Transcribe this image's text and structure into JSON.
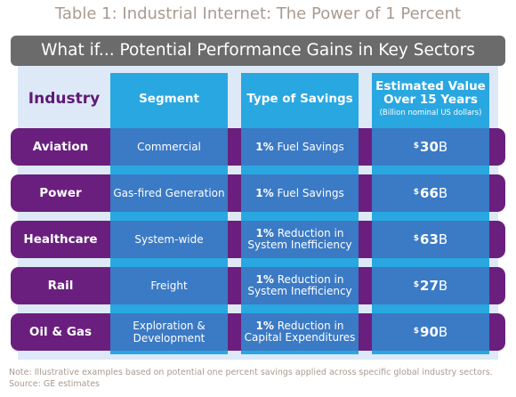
{
  "title": "Table 1: Industrial Internet: The Power of 1 Percent",
  "banner": "What if... Potential Performance Gains in Key Sectors",
  "headers": {
    "industry": "Industry",
    "segment": "Segment",
    "savings": "Type of Savings",
    "value_line1": "Estimated Value",
    "value_line2": "Over 15 Years",
    "value_sub": "(Billion nominal US dollars)"
  },
  "rows": [
    {
      "industry": "Aviation",
      "segment": "Commercial",
      "savings_pct": "1%",
      "savings": " Fuel Savings",
      "currency": "$",
      "value": "30",
      "unit": "B"
    },
    {
      "industry": "Power",
      "segment": "Gas-fired Generation",
      "savings_pct": "1%",
      "savings": " Fuel Savings",
      "currency": "$",
      "value": "66",
      "unit": "B"
    },
    {
      "industry": "Healthcare",
      "segment": "System-wide",
      "savings_pct": "1%",
      "savings": " Reduction in System Inefficiency",
      "currency": "$",
      "value": "63",
      "unit": "B"
    },
    {
      "industry": "Rail",
      "segment": "Freight",
      "savings_pct": "1%",
      "savings": " Reduction in System Inefficiency",
      "currency": "$",
      "value": "27",
      "unit": "B"
    },
    {
      "industry": "Oil & Gas",
      "segment": "Exploration & Development",
      "savings_pct": "1%",
      "savings": " Reduction in Capital Expenditures",
      "currency": "$",
      "value": "90",
      "unit": "B"
    }
  ],
  "note_line1": "Note: Illustrative examples based on potential one percent savings applied across specific global industry sectors.",
  "note_line2": "Source: GE estimates",
  "colors": {
    "title": "#a99a8e",
    "banner": "#6b6b6b",
    "column": "#29a7e1",
    "cell": "#3b7ac5",
    "row": "#6a1f7e",
    "industry_header": "#5f1a77",
    "panel": "#dde9f6"
  }
}
